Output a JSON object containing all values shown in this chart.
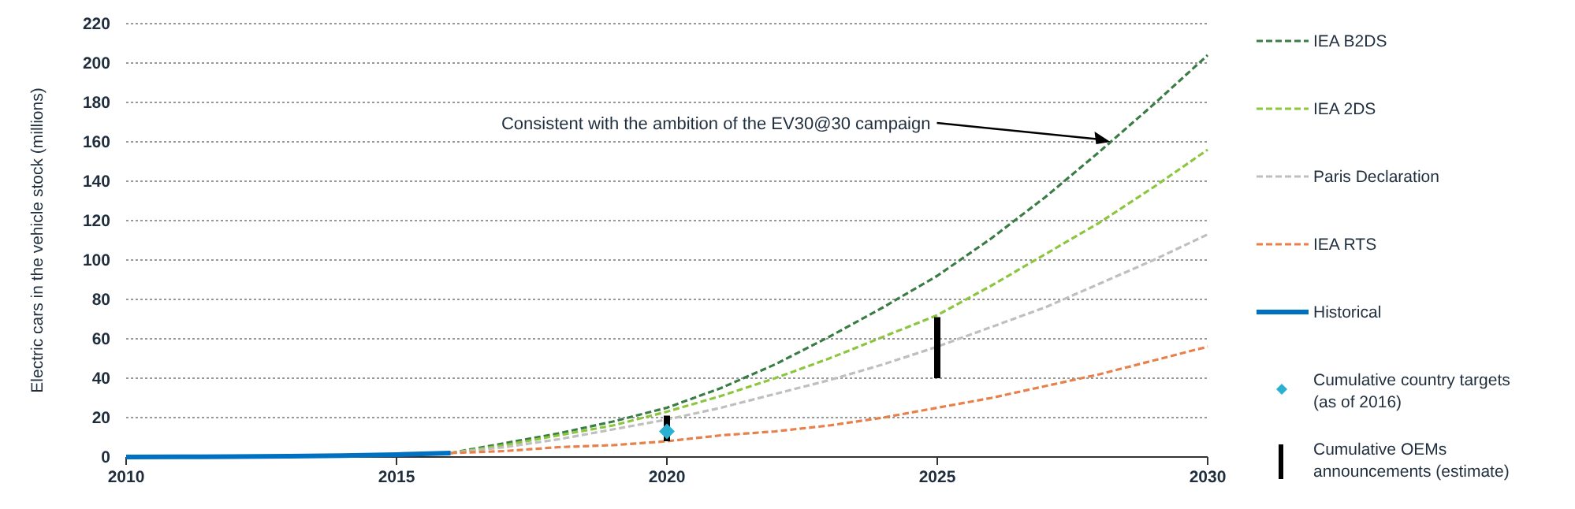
{
  "chart_data": {
    "type": "line",
    "ylabel": "Electric cars in the vehicle stock (millions)",
    "xlim": [
      2010,
      2030
    ],
    "xticks": [
      2010,
      2015,
      2020,
      2025,
      2030
    ],
    "ylim": [
      0,
      220
    ],
    "yticks": [
      0,
      20,
      40,
      60,
      80,
      100,
      120,
      140,
      160,
      180,
      200,
      220
    ],
    "grid": "y",
    "legend": "right",
    "annotations": [
      {
        "text": "Consistent with the ambition of the EV30@30 campaign",
        "x": 2028.2,
        "y": 160
      }
    ],
    "series": [
      {
        "name": "IEA B2DS",
        "color": "#3a7d44",
        "line_style": "dashed",
        "x": [
          2016,
          2017,
          2018,
          2019,
          2020,
          2021,
          2022,
          2023,
          2024,
          2025,
          2026,
          2027,
          2028,
          2029,
          2030
        ],
        "values": [
          2,
          7,
          12,
          18,
          25,
          35,
          47,
          61,
          76,
          92,
          111,
          132,
          155,
          179,
          204
        ]
      },
      {
        "name": "IEA 2DS",
        "color": "#8cc63f",
        "line_style": "dashed",
        "x": [
          2016,
          2017,
          2018,
          2019,
          2020,
          2021,
          2022,
          2023,
          2024,
          2025,
          2026,
          2027,
          2028,
          2029,
          2030
        ],
        "values": [
          2,
          6,
          11,
          16,
          23,
          31,
          40,
          50,
          61,
          72,
          87,
          103,
          119,
          137,
          156
        ]
      },
      {
        "name": "Paris Declaration",
        "color": "#bfbfbf",
        "line_style": "dashed",
        "x": [
          2016,
          2017,
          2018,
          2019,
          2020,
          2021,
          2022,
          2023,
          2024,
          2025,
          2026,
          2027,
          2028,
          2029,
          2030
        ],
        "values": [
          2,
          5,
          9,
          14,
          19,
          25,
          32,
          39,
          47,
          56,
          66,
          76,
          88,
          100,
          113
        ]
      },
      {
        "name": "IEA RTS",
        "color": "#e8804a",
        "line_style": "dashed",
        "x": [
          2016,
          2017,
          2018,
          2019,
          2020,
          2021,
          2022,
          2023,
          2024,
          2025,
          2026,
          2027,
          2028,
          2029,
          2030
        ],
        "values": [
          2,
          3,
          5,
          6,
          8,
          11,
          13,
          16,
          20,
          25,
          30,
          36,
          42,
          49,
          56
        ]
      },
      {
        "name": "Historical",
        "color": "#0070c0",
        "line_style": "solid",
        "x": [
          2010,
          2011,
          2012,
          2013,
          2014,
          2015,
          2016
        ],
        "values": [
          0,
          0.1,
          0.2,
          0.4,
          0.7,
          1.2,
          2
        ]
      },
      {
        "name": "Cumulative country targets (as of 2016)",
        "type": "scatter",
        "marker": "diamond",
        "color": "#2ab0d0",
        "x": [
          2020
        ],
        "values": [
          13
        ]
      },
      {
        "name": "Cumulative OEMs announcements (estimate)",
        "type": "bar",
        "color": "#000000",
        "x": [
          2020,
          2025
        ],
        "base": [
          8,
          40
        ],
        "values": [
          13,
          31
        ]
      }
    ]
  }
}
